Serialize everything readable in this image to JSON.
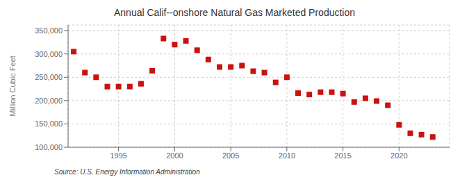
{
  "chart_data": {
    "type": "scatter",
    "title": "Annual Calif--onshore Natural Gas Marketed Production",
    "y_label": "Million Cubic Feet",
    "annotations": [
      "Source: U.S. Energy Information Administration"
    ],
    "x": [
      1991,
      1992,
      1993,
      1994,
      1995,
      1996,
      1997,
      1998,
      1999,
      2000,
      2001,
      2002,
      2003,
      2004,
      2005,
      2006,
      2007,
      2008,
      2009,
      2010,
      2011,
      2012,
      2013,
      2014,
      2015,
      2016,
      2017,
      2018,
      2019,
      2020,
      2021,
      2022,
      2023
    ],
    "values": [
      305000,
      260000,
      250000,
      230000,
      230000,
      230000,
      236000,
      264000,
      333000,
      320000,
      328000,
      308000,
      288000,
      272000,
      272000,
      275000,
      263000,
      260000,
      239000,
      250000,
      216000,
      213000,
      218000,
      218000,
      215000,
      197000,
      205000,
      199000,
      190000,
      148000,
      130000,
      127000,
      122000
    ],
    "color": "#cc1111",
    "marker": "square",
    "xlim": [
      1990.5,
      2024.5
    ],
    "ylim": [
      100000,
      362000
    ],
    "xticks": [
      1995,
      2000,
      2005,
      2010,
      2015,
      2020
    ],
    "yticks": [
      {
        "value": 100000,
        "label": "100,000"
      },
      {
        "value": 150000,
        "label": "150,000"
      },
      {
        "value": 200000,
        "label": "200,000"
      },
      {
        "value": 250000,
        "label": "250,000"
      },
      {
        "value": 300000,
        "label": "300,000"
      },
      {
        "value": 350000,
        "label": "350,000"
      }
    ],
    "grid": true
  }
}
